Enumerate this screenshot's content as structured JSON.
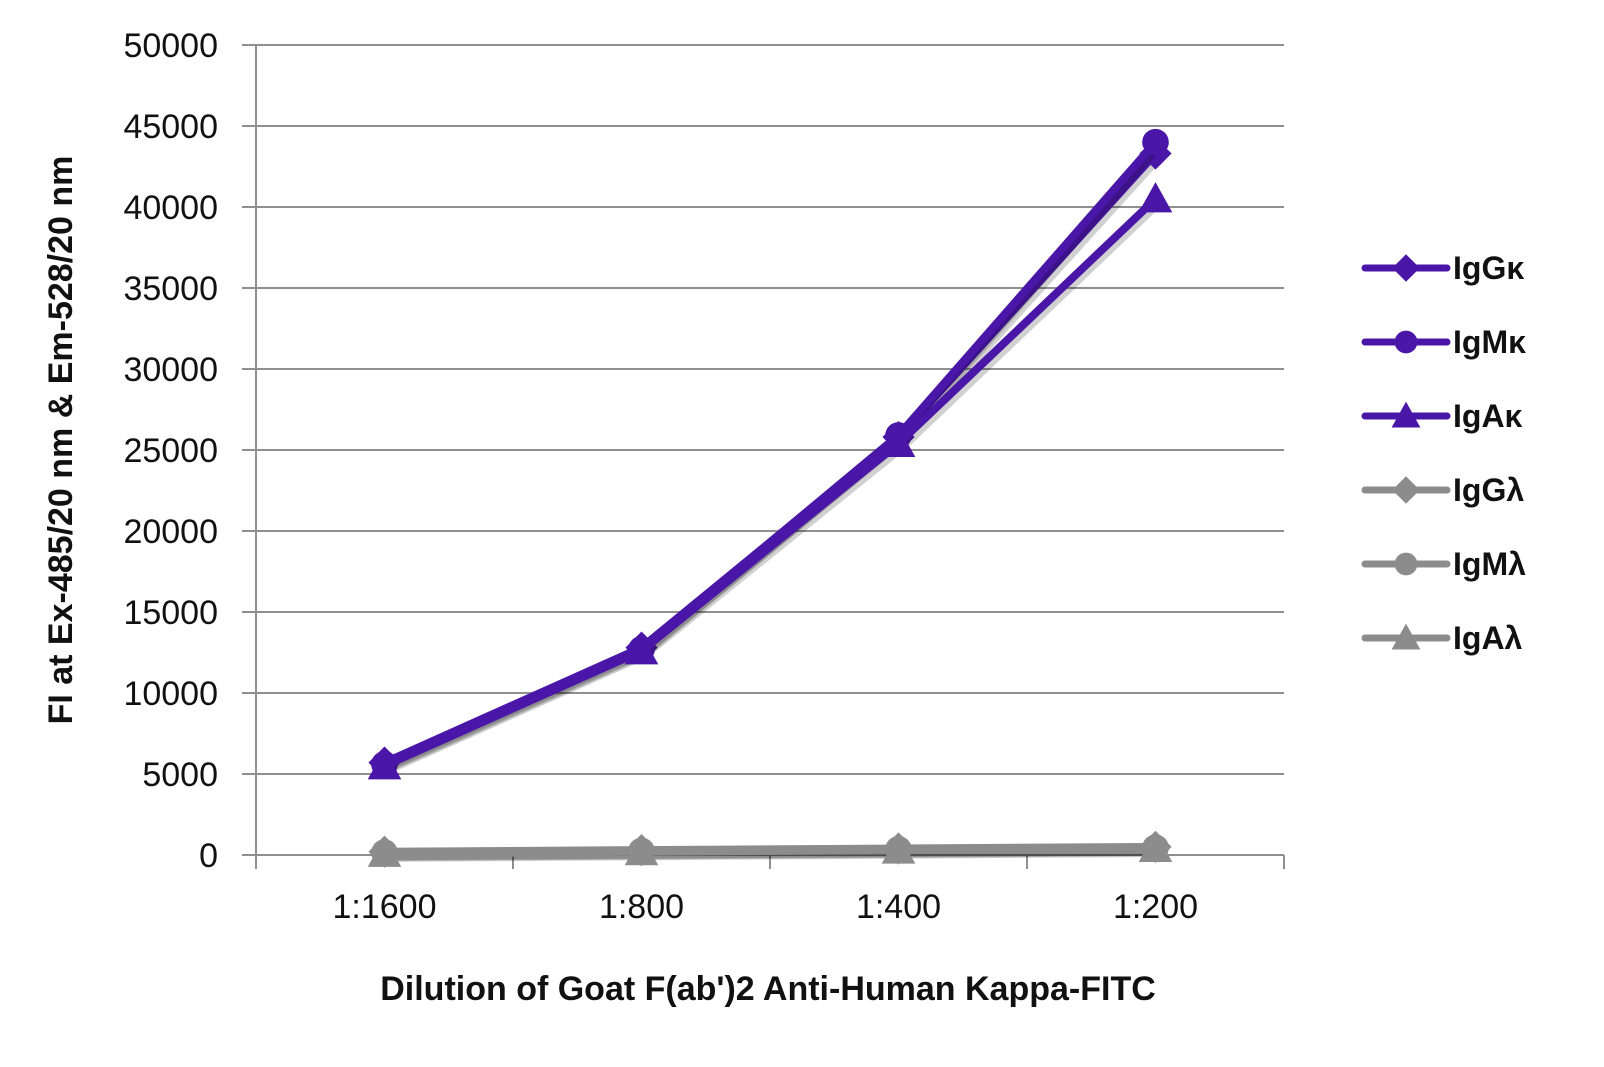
{
  "chart_data": {
    "type": "line",
    "title": "",
    "xlabel": "Dilution of Goat F(ab')2 Anti-Human Kappa-FITC",
    "ylabel": "FI at Ex-485/20 nm & Em-528/20 nm",
    "categories": [
      "1:1600",
      "1:800",
      "1:400",
      "1:200"
    ],
    "ylim": [
      0,
      50000
    ],
    "yticks": [
      0,
      5000,
      10000,
      15000,
      20000,
      25000,
      30000,
      35000,
      40000,
      45000,
      50000
    ],
    "grid": true,
    "legend_position": "right",
    "series": [
      {
        "name": "IgGκ",
        "color": "#4a16a8",
        "marker": "diamond",
        "values": [
          5700,
          12800,
          25800,
          43300
        ]
      },
      {
        "name": "IgMκ",
        "color": "#4a16a8",
        "marker": "circle",
        "values": [
          5600,
          12700,
          25900,
          44000
        ]
      },
      {
        "name": "IgAκ",
        "color": "#4a16a8",
        "marker": "triangle",
        "values": [
          5500,
          12600,
          25400,
          40500
        ]
      },
      {
        "name": "IgGλ",
        "color": "#8c8c8c",
        "marker": "diamond",
        "values": [
          200,
          300,
          400,
          500
        ]
      },
      {
        "name": "IgMλ",
        "color": "#8c8c8c",
        "marker": "circle",
        "values": [
          150,
          250,
          350,
          450
        ]
      },
      {
        "name": "IgAλ",
        "color": "#8c8c8c",
        "marker": "triangle",
        "values": [
          100,
          200,
          300,
          400
        ]
      }
    ]
  }
}
